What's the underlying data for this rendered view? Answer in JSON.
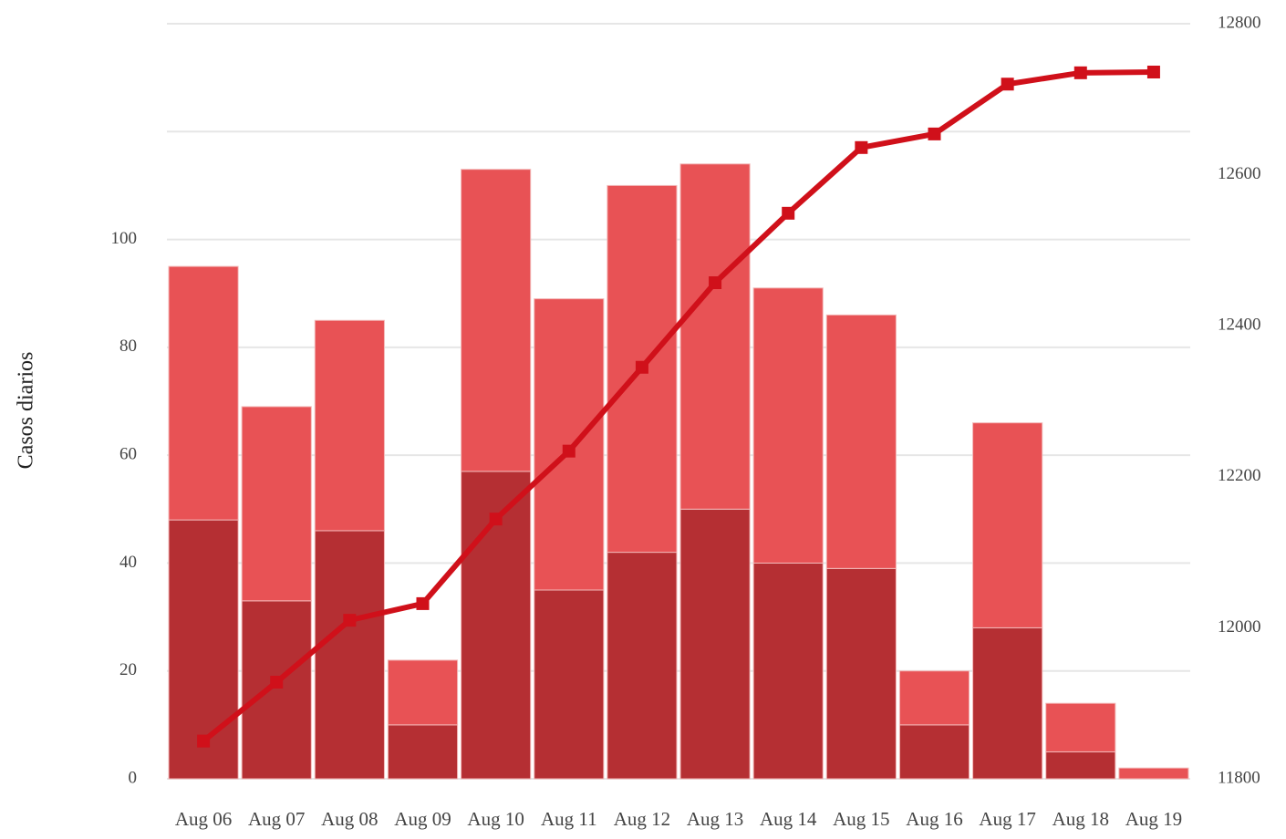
{
  "chart_data": {
    "type": "bar",
    "y_label": "Casos diarios",
    "categories": [
      "Aug 06",
      "Aug 07",
      "Aug 08",
      "Aug 09",
      "Aug 10",
      "Aug 11",
      "Aug 12",
      "Aug 13",
      "Aug 14",
      "Aug 15",
      "Aug 16",
      "Aug 17",
      "Aug 18",
      "Aug 19"
    ],
    "series": [
      {
        "type": "bar",
        "stacked": true,
        "color": "#b52f33",
        "values": [
          48,
          33,
          46,
          10,
          57,
          35,
          42,
          50,
          40,
          39,
          10,
          28,
          5,
          0
        ]
      },
      {
        "type": "bar",
        "stacked": true,
        "color": "#e85255",
        "values": [
          47,
          36,
          39,
          12,
          56,
          54,
          68,
          64,
          51,
          47,
          10,
          38,
          9,
          2
        ]
      },
      {
        "type": "line",
        "axis": "y2",
        "color": "#d0101a",
        "values": [
          11850,
          11928,
          12010,
          12032,
          12144,
          12234,
          12345,
          12457,
          12549,
          12636,
          12654,
          12720,
          12735,
          12736
        ]
      }
    ],
    "ylim": [
      0,
      140
    ],
    "yticks": [
      0,
      20,
      40,
      60,
      80,
      100,
      {
        "value": 120,
        "label": null
      },
      {
        "value": 140,
        "label": null
      }
    ],
    "y2lim": [
      11800,
      12800
    ],
    "y2ticks": [
      11800,
      12000,
      12200,
      12400,
      12600,
      12800
    ],
    "grid": true
  }
}
